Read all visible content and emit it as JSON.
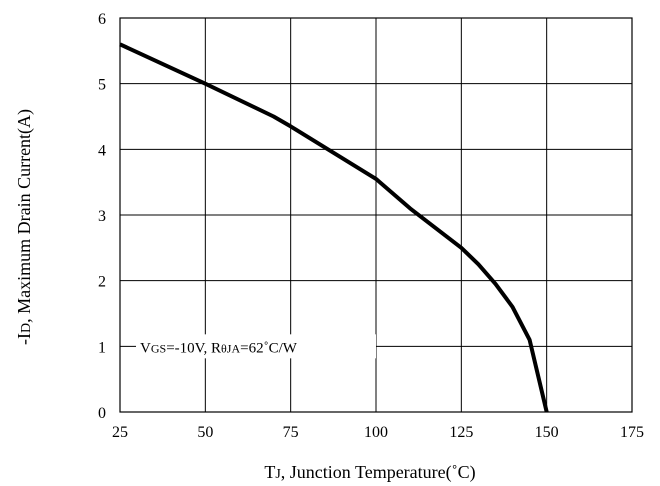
{
  "chart_data": {
    "type": "line",
    "title": "",
    "xlabel_main": "T",
    "xlabel_sub": "J",
    "xlabel_rest": ", Junction Temperature(˚C)",
    "ylabel_main": "-I",
    "ylabel_sub": "D",
    "ylabel_rest": ", Maximum Drain Current(A)",
    "xlim": [
      25,
      175
    ],
    "ylim": [
      0,
      6
    ],
    "xticks": [
      "25",
      "50",
      "75",
      "100",
      "125",
      "150",
      "175"
    ],
    "yticks": [
      "0",
      "1",
      "2",
      "3",
      "4",
      "5",
      "6"
    ],
    "grid": true,
    "annotation": {
      "v": "V",
      "gs": "GS",
      "mid": "=-10V, R",
      "theta": "θ",
      "ja": "JA",
      "end": "=62˚C/W"
    },
    "series": [
      {
        "x": [
          25,
          50,
          70,
          75,
          100,
          110,
          125,
          130,
          135,
          140,
          145,
          150
        ],
        "y": [
          5.6,
          5.0,
          4.5,
          4.35,
          3.55,
          3.1,
          2.5,
          2.25,
          1.95,
          1.6,
          1.1,
          0.0
        ]
      }
    ]
  }
}
